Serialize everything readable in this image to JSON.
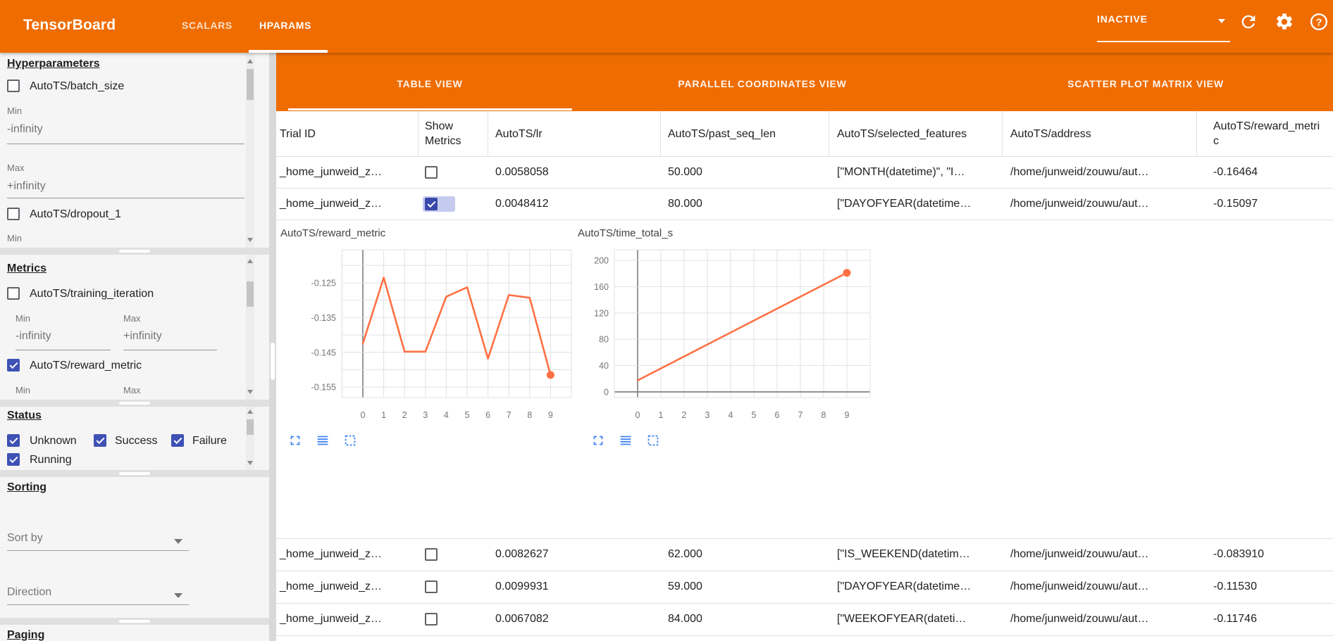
{
  "topbar": {
    "brand": "TensorBoard",
    "tabs": [
      {
        "label": "SCALARS",
        "active": false
      },
      {
        "label": "HPARAMS",
        "active": true
      }
    ],
    "run_status": "INACTIVE",
    "accent_color": "#ef6c00"
  },
  "sidebar": {
    "hyperparameters": {
      "heading": "Hyperparameters",
      "items": [
        {
          "label": "AutoTS/batch_size",
          "checked": false
        },
        {
          "label": "AutoTS/dropout_1",
          "checked": false
        }
      ],
      "min_label": "Min",
      "max_label": "Max",
      "min_value": "-infinity",
      "max_value": "+infinity"
    },
    "metrics": {
      "heading": "Metrics",
      "items": [
        {
          "label": "AutoTS/training_iteration",
          "checked": false
        },
        {
          "label": "AutoTS/reward_metric",
          "checked": true
        }
      ],
      "min_label": "Min",
      "max_label": "Max",
      "min_value": "-infinity",
      "max_value": "+infinity"
    },
    "status": {
      "heading": "Status",
      "items": [
        {
          "label": "Unknown",
          "checked": true
        },
        {
          "label": "Success",
          "checked": true
        },
        {
          "label": "Failure",
          "checked": true
        },
        {
          "label": "Running",
          "checked": true
        }
      ]
    },
    "sorting": {
      "heading": "Sorting",
      "sort_by_label": "Sort by",
      "direction_label": "Direction"
    },
    "paging": {
      "heading": "Paging"
    }
  },
  "main": {
    "view_tabs": [
      {
        "label": "TABLE VIEW",
        "active": true
      },
      {
        "label": "PARALLEL COORDINATES VIEW",
        "active": false
      },
      {
        "label": "SCATTER PLOT MATRIX VIEW",
        "active": false
      }
    ],
    "table": {
      "columns": [
        "Trial ID",
        "Show Metrics",
        "AutoTS/lr",
        "AutoTS/past_seq_len",
        "AutoTS/selected_features",
        "AutoTS/address",
        "AutoTS/reward_metric"
      ],
      "rows": [
        {
          "trial_id": "_home_junweid_z…",
          "show_metrics": false,
          "lr": "0.0058058",
          "past_seq_len": "50.000",
          "selected_features": "[\"MONTH(datetime)\", \"I…",
          "address": "/home/junweid/zouwu/aut…",
          "reward_metric": "-0.16464"
        },
        {
          "trial_id": "_home_junweid_z…",
          "show_metrics": true,
          "lr": "0.0048412",
          "past_seq_len": "80.000",
          "selected_features": "[\"DAYOFYEAR(datetime…",
          "address": "/home/junweid/zouwu/aut…",
          "reward_metric": "-0.15097"
        },
        {
          "trial_id": "_home_junweid_z…",
          "show_metrics": false,
          "lr": "0.0082627",
          "past_seq_len": "62.000",
          "selected_features": "[\"IS_WEEKEND(datetim…",
          "address": "/home/junweid/zouwu/aut…",
          "reward_metric": "-0.083910"
        },
        {
          "trial_id": "_home_junweid_z…",
          "show_metrics": false,
          "lr": "0.0099931",
          "past_seq_len": "59.000",
          "selected_features": "[\"DAYOFYEAR(datetime…",
          "address": "/home/junweid/zouwu/aut…",
          "reward_metric": "-0.11530"
        },
        {
          "trial_id": "_home_junweid_z…",
          "show_metrics": false,
          "lr": "0.0067082",
          "past_seq_len": "84.000",
          "selected_features": "[\"WEEKOFYEAR(dateti…",
          "address": "/home/junweid/zouwu/aut…",
          "reward_metric": "-0.11746"
        }
      ]
    }
  },
  "chart_data": [
    {
      "type": "line",
      "title": "AutoTS/reward_metric",
      "x": [
        0,
        1,
        2,
        3,
        4,
        5,
        6,
        7,
        8,
        9
      ],
      "values": [
        -0.1425,
        -0.1235,
        -0.1448,
        -0.1448,
        -0.129,
        -0.1263,
        -0.1468,
        -0.1285,
        -0.1293,
        -0.1515
      ],
      "x_ticks": [
        0,
        1,
        2,
        3,
        4,
        5,
        6,
        7,
        8,
        9
      ],
      "y_ticks": [
        -0.125,
        -0.135,
        -0.145,
        -0.155
      ],
      "y_tick_labels": [
        "-0.125",
        "-0.135",
        "-0.145",
        "-0.155"
      ],
      "ylim": [
        -0.158,
        -0.1155
      ],
      "line_color": "#ff7043",
      "marker": "last-point",
      "grid": true
    },
    {
      "type": "line",
      "title": "AutoTS/time_total_s",
      "x": [
        0,
        9
      ],
      "values": [
        17.5,
        181
      ],
      "x_ticks": [
        0,
        1,
        2,
        3,
        4,
        5,
        6,
        7,
        8,
        9
      ],
      "y_ticks": [
        0,
        40,
        80,
        120,
        160,
        200
      ],
      "y_tick_labels": [
        "0",
        "40",
        "80",
        "120",
        "160",
        "200"
      ],
      "ylim": [
        -8.6,
        216
      ],
      "line_color": "#ff7043",
      "marker": "last-point",
      "grid": true
    }
  ]
}
